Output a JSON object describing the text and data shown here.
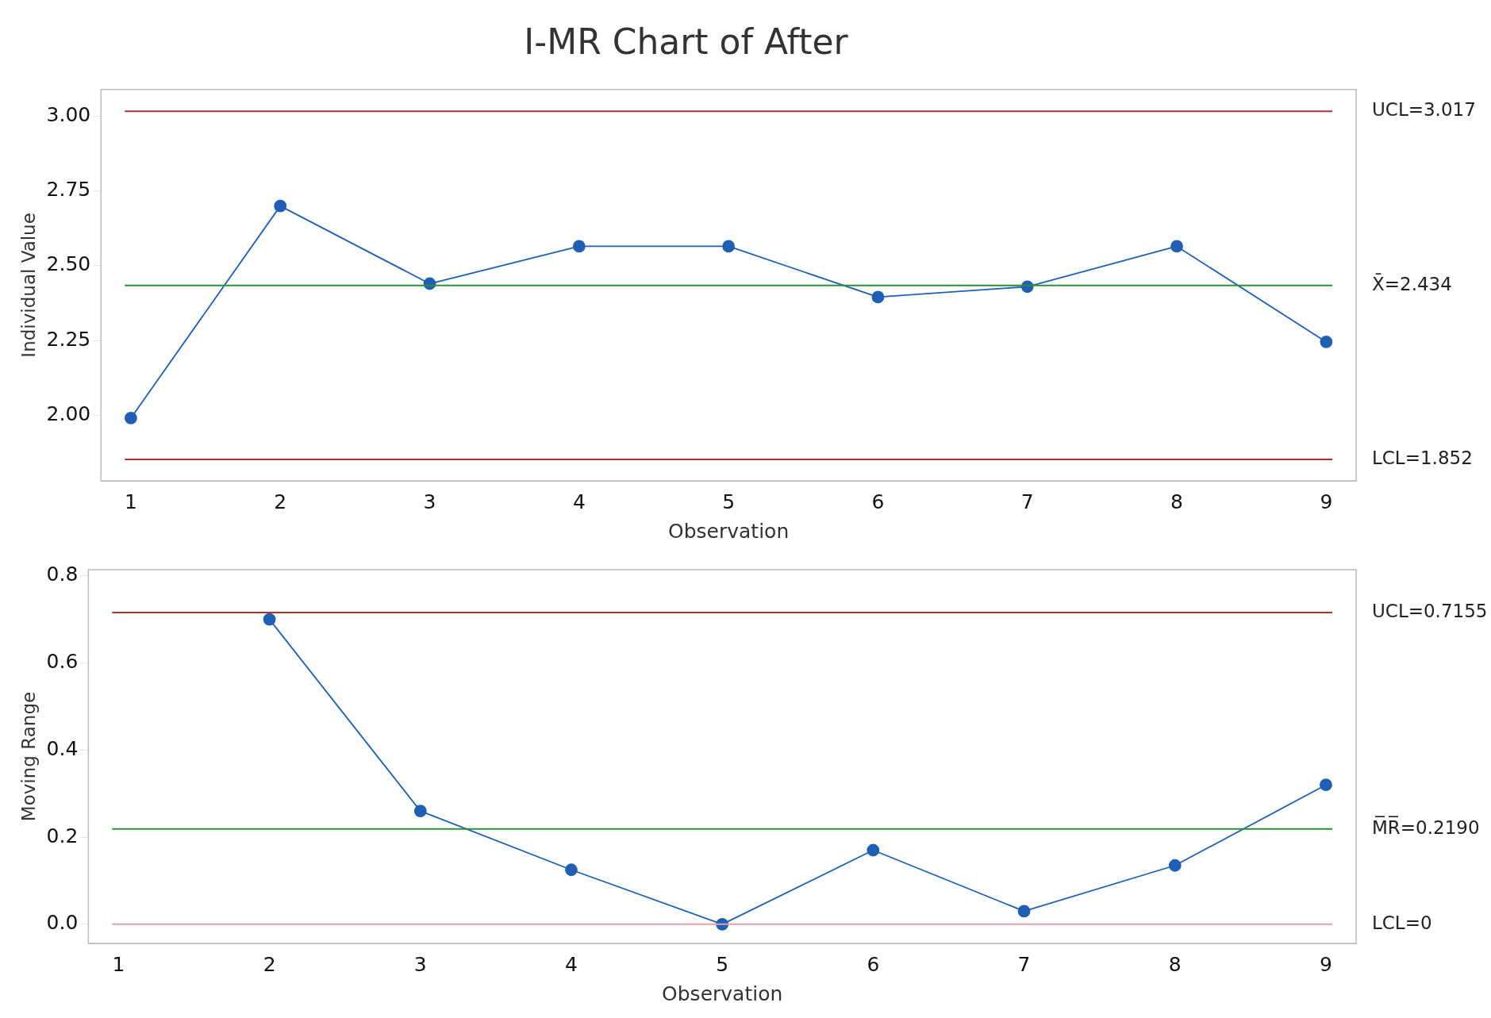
{
  "chart_data": [
    {
      "type": "line",
      "title": "I-MR Chart of After",
      "xlabel": "Observation",
      "ylabel": "Individual Value",
      "x": [
        1,
        2,
        3,
        4,
        5,
        6,
        7,
        8,
        9
      ],
      "series": [
        {
          "color": "#1f5fb4",
          "values": [
            1.99,
            2.7,
            2.44,
            2.565,
            2.565,
            2.395,
            2.43,
            2.565,
            2.245
          ]
        }
      ],
      "xlim": [
        0.8,
        9.2
      ],
      "xticks": [
        1,
        2,
        3,
        4,
        5,
        6,
        7,
        8,
        9
      ],
      "ylim": [
        1.78,
        3.09
      ],
      "yticks": [
        {
          "value": 2,
          "label": "2.00"
        },
        {
          "value": 2.25,
          "label": "2.25"
        },
        {
          "value": 2.5,
          "label": "2.50"
        },
        {
          "value": 2.75,
          "label": "2.75"
        },
        {
          "value": 3,
          "label": "3.00"
        }
      ],
      "ref_lines": [
        {
          "axis": "y",
          "value": 3.017,
          "label": "UCL=3.017",
          "color": "#b03030"
        },
        {
          "axis": "y",
          "value": 2.434,
          "label": "X̄=2.434",
          "color": "#2a9038"
        },
        {
          "axis": "y",
          "value": 1.852,
          "label": "LCL=1.852",
          "color": "#b03030"
        }
      ],
      "marker": "circle",
      "grid": false,
      "legend": false
    },
    {
      "type": "line",
      "xlabel": "Observation",
      "ylabel": "Moving Range",
      "x": [
        2,
        3,
        4,
        5,
        6,
        7,
        8,
        9
      ],
      "series": [
        {
          "color": "#1f5fb4",
          "values": [
            0.7,
            0.26,
            0.125,
            0,
            0.17,
            0.03,
            0.135,
            0.32
          ]
        }
      ],
      "xlim": [
        0.8,
        9.2
      ],
      "xticks": [
        1,
        2,
        3,
        4,
        5,
        6,
        7,
        8,
        9
      ],
      "ylim": [
        -0.044,
        0.814
      ],
      "yticks": [
        {
          "value": 0,
          "label": "0.0"
        },
        {
          "value": 0.2,
          "label": "0.2"
        },
        {
          "value": 0.4,
          "label": "0.4"
        },
        {
          "value": 0.6,
          "label": "0.6"
        },
        {
          "value": 0.8,
          "label": "0.8"
        }
      ],
      "ref_lines": [
        {
          "axis": "y",
          "value": 0.7155,
          "label": "UCL=0.7155",
          "color": "#b03030"
        },
        {
          "axis": "y",
          "value": 0.219,
          "label": "M̅R̅=0.2190",
          "color": "#2a9038"
        },
        {
          "axis": "y",
          "value": 0,
          "label": "LCL=0",
          "color": "#e0a0a8"
        }
      ],
      "marker": "circle",
      "grid": false,
      "legend": false
    }
  ]
}
